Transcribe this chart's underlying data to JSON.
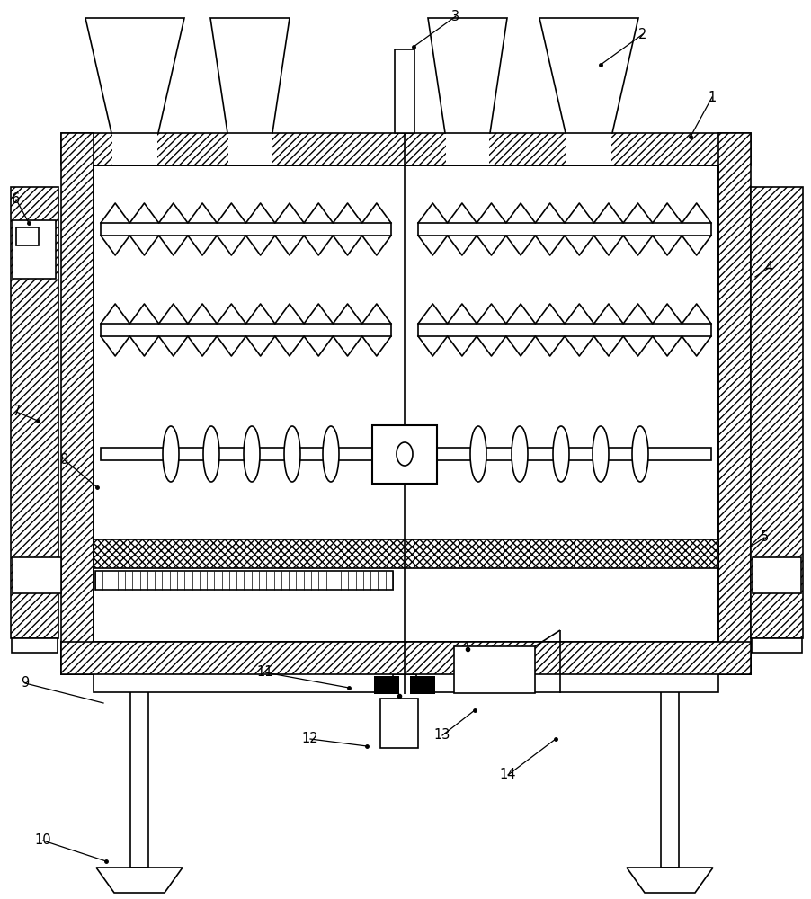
{
  "bg": "#ffffff",
  "lw": 1.2,
  "fw": 9.03,
  "fh": 10.0,
  "dpi": 100
}
